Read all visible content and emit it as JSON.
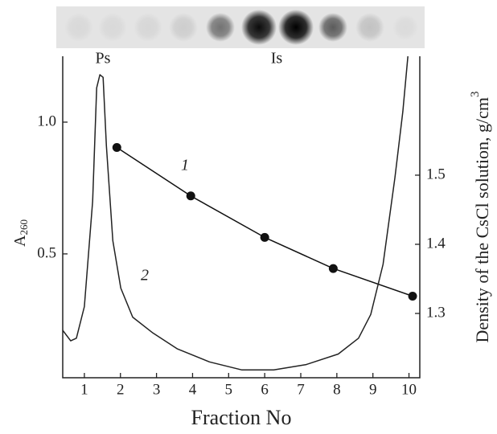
{
  "chart_data": {
    "type": "line",
    "xlabel": "Fraction No",
    "ylabel": "A",
    "ylabel_sub": "260",
    "y2label": "Density of the CsCl solution, g/cm",
    "y2label_sup": "3",
    "annotations": [
      "Ps",
      "Is"
    ],
    "xlim": [
      0.4,
      10.3
    ],
    "xticks": [
      1,
      2,
      3,
      4,
      5,
      6,
      7,
      8,
      9,
      10
    ],
    "ylim": [
      0.03,
      1.25
    ],
    "yticks": [
      0.5,
      {
        "value": 1,
        "label": "1.0"
      }
    ],
    "y2lim": [
      1.207,
      1.672
    ],
    "y2ticks": [
      1.3,
      1.4,
      1.5
    ],
    "series": [
      {
        "name": "1",
        "color": "#111111",
        "axis": "y2",
        "markers": true,
        "x": [
          1.9,
          3.95,
          6.0,
          7.9,
          10.1
        ],
        "values": [
          1.54,
          1.47,
          1.41,
          1.365,
          1.325
        ]
      },
      {
        "name": "2",
        "color": "#222222",
        "markers": false,
        "x": [
          0.4,
          0.62,
          0.78,
          1.0,
          1.23,
          1.34,
          1.43,
          1.52,
          1.61,
          1.79,
          2.01,
          2.34,
          2.9,
          3.57,
          4.47,
          5.36,
          6.25,
          7.15,
          8.04,
          8.6,
          8.94,
          9.28,
          9.61,
          9.83,
          9.97
        ],
        "values": [
          0.21,
          0.17,
          0.18,
          0.3,
          0.7,
          1.13,
          1.18,
          1.17,
          0.91,
          0.55,
          0.37,
          0.26,
          0.2,
          0.14,
          0.09,
          0.06,
          0.06,
          0.08,
          0.12,
          0.18,
          0.27,
          0.46,
          0.79,
          1.04,
          1.25
        ]
      }
    ]
  }
}
